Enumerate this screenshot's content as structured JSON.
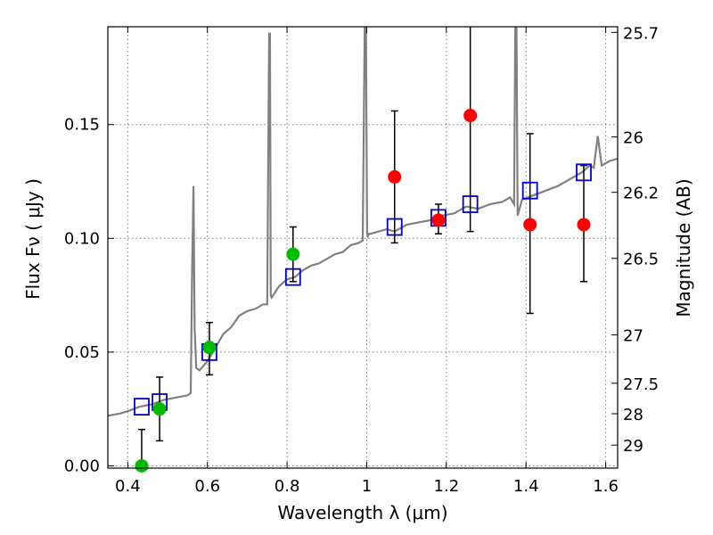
{
  "chart_data": {
    "type": "scatter",
    "xlabel": "Wavelength  λ (μm)",
    "ylabel": "Flux  Fν  ( μJy )",
    "ylabel_right": "Magnitude (AB)",
    "xlim": [
      0.35,
      1.63
    ],
    "ylim": [
      -0.001,
      0.193
    ],
    "grid": true,
    "x_ticks": [
      0.4,
      0.6,
      0.8,
      1.0,
      1.2,
      1.4,
      1.6
    ],
    "x_tick_labels": [
      "0.4",
      "0.6",
      "0.8",
      "1",
      "1.2",
      "1.4",
      "1.6"
    ],
    "y_ticks": [
      0.0,
      0.05,
      0.1,
      0.15
    ],
    "y_tick_labels": [
      "0.00",
      "0.05",
      "0.10",
      "0.15"
    ],
    "mag_ticks": [
      25.7,
      26,
      26.2,
      26.5,
      27,
      27.5,
      28,
      29
    ],
    "mag_tick_labels": [
      "25.7",
      "26",
      "26.2",
      "26.5",
      "27",
      "27.5",
      "28",
      "29"
    ],
    "colors": {
      "model": "#808080",
      "green": "#00bb00",
      "red": "#ff0000",
      "box": "#0000cc",
      "error": "#000000",
      "grid": "#7f7f7f"
    },
    "series": [
      {
        "name": "model template",
        "kind": "line",
        "x": [
          0.35,
          0.38,
          0.4,
          0.43,
          0.46,
          0.49,
          0.52,
          0.55,
          0.558,
          0.562,
          0.565,
          0.568,
          0.572,
          0.58,
          0.6,
          0.62,
          0.64,
          0.66,
          0.68,
          0.7,
          0.72,
          0.74,
          0.75,
          0.755,
          0.757,
          0.759,
          0.761,
          0.765,
          0.78,
          0.8,
          0.82,
          0.84,
          0.86,
          0.88,
          0.9,
          0.92,
          0.94,
          0.96,
          0.98,
          0.99,
          0.995,
          0.998,
          1.001,
          1.003,
          1.005,
          1.01,
          1.03,
          1.05,
          1.07,
          1.1,
          1.13,
          1.16,
          1.19,
          1.22,
          1.25,
          1.28,
          1.31,
          1.34,
          1.36,
          1.37,
          1.373,
          1.376,
          1.379,
          1.382,
          1.39,
          1.42,
          1.45,
          1.48,
          1.51,
          1.54,
          1.56,
          1.57,
          1.58,
          1.59,
          1.61,
          1.63
        ],
        "y": [
          0.022,
          0.023,
          0.024,
          0.026,
          0.027,
          0.029,
          0.03,
          0.031,
          0.032,
          0.09,
          0.123,
          0.06,
          0.043,
          0.042,
          0.046,
          0.052,
          0.058,
          0.061,
          0.066,
          0.068,
          0.069,
          0.071,
          0.071,
          0.19,
          0.19,
          0.075,
          0.074,
          0.075,
          0.079,
          0.082,
          0.083,
          0.086,
          0.088,
          0.089,
          0.091,
          0.093,
          0.094,
          0.097,
          0.098,
          0.099,
          0.193,
          0.193,
          0.102,
          0.101,
          0.102,
          0.102,
          0.103,
          0.104,
          0.103,
          0.106,
          0.107,
          0.108,
          0.11,
          0.111,
          0.114,
          0.113,
          0.115,
          0.116,
          0.118,
          0.115,
          0.193,
          0.193,
          0.11,
          0.112,
          0.117,
          0.119,
          0.121,
          0.123,
          0.126,
          0.129,
          0.132,
          0.131,
          0.145,
          0.132,
          0.134,
          0.135
        ]
      },
      {
        "name": "green detections",
        "kind": "points",
        "marker": "circle",
        "x": [
          0.435,
          0.48,
          0.605,
          0.815
        ],
        "y": [
          0.0,
          0.025,
          0.052,
          0.093
        ]
      },
      {
        "name": "red detections",
        "kind": "points",
        "marker": "circle",
        "x": [
          1.07,
          1.18,
          1.26,
          1.41,
          1.545
        ],
        "y": [
          0.127,
          0.108,
          0.154,
          0.106,
          0.106
        ]
      },
      {
        "name": "model photometry",
        "kind": "points",
        "marker": "square",
        "x": [
          0.435,
          0.48,
          0.605,
          0.815,
          1.07,
          1.18,
          1.26,
          1.41,
          1.545
        ],
        "y": [
          0.026,
          0.028,
          0.05,
          0.083,
          0.105,
          0.109,
          0.115,
          0.121,
          0.129
        ]
      },
      {
        "name": "error bars",
        "kind": "errorbars",
        "x": [
          0.435,
          0.48,
          0.605,
          0.815,
          1.07,
          1.18,
          1.26,
          1.41,
          1.545
        ],
        "low": [
          -0.001,
          0.011,
          0.04,
          0.081,
          0.098,
          0.102,
          0.103,
          0.067,
          0.081
        ],
        "high": [
          0.016,
          0.039,
          0.063,
          0.105,
          0.156,
          0.115,
          0.193,
          0.146,
          0.132
        ]
      }
    ]
  }
}
